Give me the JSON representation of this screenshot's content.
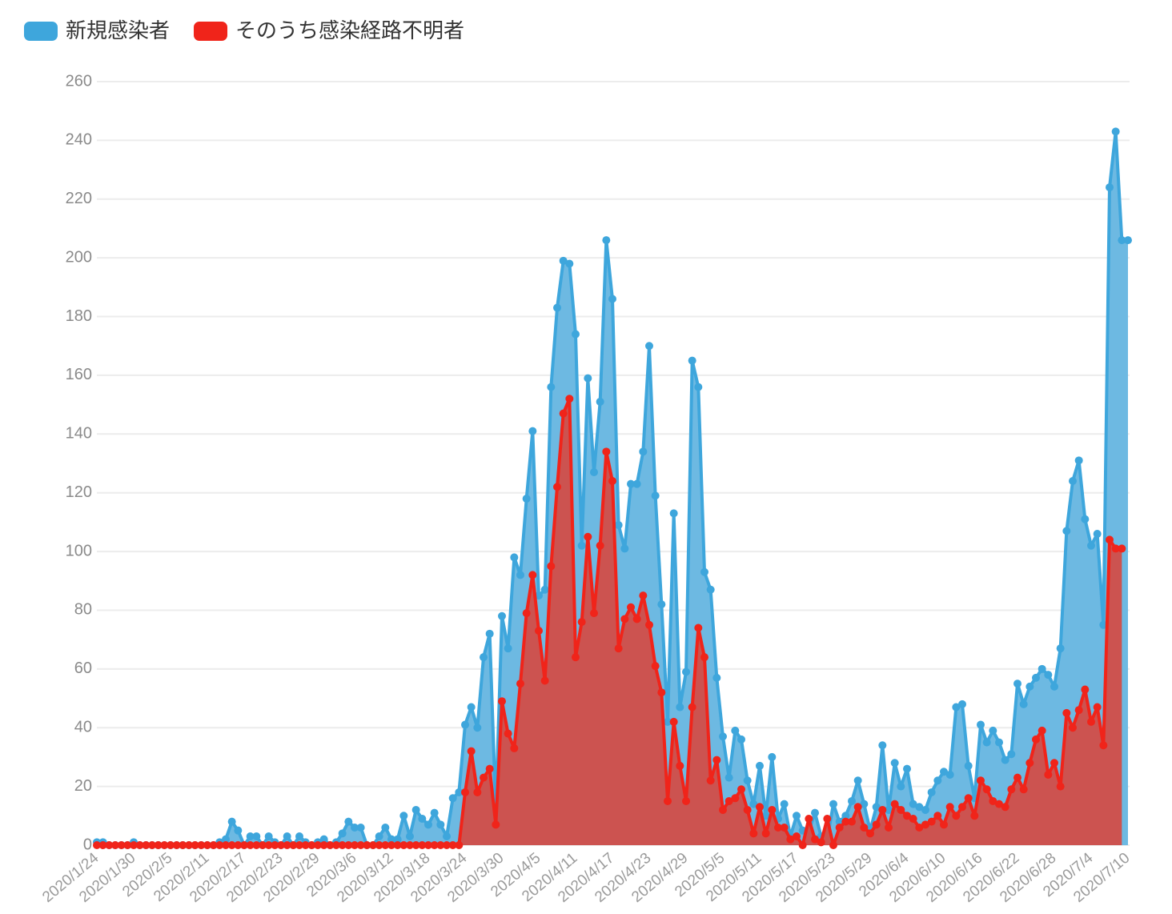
{
  "chart_data": {
    "type": "area-line",
    "categories": [
      "2020/1/24",
      null,
      null,
      null,
      null,
      null,
      "2020/1/30",
      null,
      null,
      null,
      null,
      null,
      "2020/2/5",
      null,
      null,
      null,
      null,
      null,
      "2020/2/11",
      null,
      null,
      null,
      null,
      null,
      "2020/2/17",
      null,
      null,
      null,
      null,
      null,
      "2020/2/23",
      null,
      null,
      null,
      null,
      null,
      "2020/2/29",
      null,
      null,
      null,
      null,
      null,
      "2020/3/6",
      null,
      null,
      null,
      null,
      null,
      "2020/3/12",
      null,
      null,
      null,
      null,
      null,
      "2020/3/18",
      null,
      null,
      null,
      null,
      null,
      "2020/3/24",
      null,
      null,
      null,
      null,
      null,
      "2020/3/30",
      null,
      null,
      null,
      null,
      null,
      "2020/4/5",
      null,
      null,
      null,
      null,
      null,
      "2020/4/11",
      null,
      null,
      null,
      null,
      null,
      "2020/4/17",
      null,
      null,
      null,
      null,
      null,
      "2020/4/23",
      null,
      null,
      null,
      null,
      null,
      "2020/4/29",
      null,
      null,
      null,
      null,
      null,
      "2020/5/5",
      null,
      null,
      null,
      null,
      null,
      "2020/5/11",
      null,
      null,
      null,
      null,
      null,
      "2020/5/17",
      null,
      null,
      null,
      null,
      null,
      "2020/5/23",
      null,
      null,
      null,
      null,
      null,
      "2020/5/29",
      null,
      null,
      null,
      null,
      null,
      "2020/6/4",
      null,
      null,
      null,
      null,
      null,
      "2020/6/10",
      null,
      null,
      null,
      null,
      null,
      "2020/6/16",
      null,
      null,
      null,
      null,
      null,
      "2020/6/22",
      null,
      null,
      null,
      null,
      null,
      "2020/6/28",
      null,
      null,
      null,
      null,
      null,
      "2020/7/4",
      null,
      null,
      null,
      null,
      null,
      "2020/7/10"
    ],
    "series": [
      {
        "name": "新規感染者",
        "color": "#3ea6dc",
        "fill": "#6db9e2",
        "values": [
          1,
          1,
          0,
          0,
          0,
          0,
          1,
          0,
          0,
          0,
          0,
          0,
          0,
          0,
          0,
          0,
          0,
          0,
          0,
          0,
          1,
          2,
          8,
          5,
          0,
          3,
          3,
          0,
          3,
          1,
          0,
          3,
          0,
          3,
          1,
          0,
          1,
          2,
          0,
          1,
          4,
          8,
          6,
          6,
          0,
          0,
          3,
          6,
          2,
          2,
          10,
          3,
          12,
          9,
          7,
          11,
          7,
          3,
          16,
          18,
          41,
          47,
          40,
          64,
          72,
          12,
          78,
          67,
          98,
          92,
          118,
          141,
          85,
          87,
          156,
          183,
          199,
          198,
          174,
          102,
          159,
          127,
          151,
          206,
          186,
          109,
          101,
          123,
          123,
          134,
          170,
          119,
          82,
          42,
          113,
          47,
          59,
          165,
          156,
          93,
          87,
          57,
          37,
          23,
          39,
          36,
          22,
          14,
          27,
          10,
          30,
          9,
          14,
          3,
          10,
          5,
          5,
          11,
          3,
          2,
          14,
          8,
          10,
          15,
          22,
          14,
          5,
          13,
          34,
          12,
          28,
          20,
          26,
          14,
          13,
          12,
          18,
          22,
          25,
          24,
          47,
          48,
          27,
          16,
          41,
          35,
          39,
          35,
          29,
          31,
          55,
          48,
          54,
          57,
          60,
          58,
          54,
          67,
          107,
          124,
          131,
          111,
          102,
          106,
          75,
          224,
          243,
          206,
          206
        ]
      },
      {
        "name": "そのうち感染経路不明者",
        "color": "#f0241a",
        "fill": "#cc5350",
        "values": [
          0,
          0,
          0,
          0,
          0,
          0,
          0,
          0,
          0,
          0,
          0,
          0,
          0,
          0,
          0,
          0,
          0,
          0,
          0,
          0,
          0,
          0,
          0,
          0,
          0,
          0,
          0,
          0,
          0,
          0,
          0,
          0,
          0,
          0,
          0,
          0,
          0,
          0,
          0,
          0,
          0,
          0,
          0,
          0,
          0,
          0,
          0,
          0,
          0,
          0,
          0,
          0,
          0,
          0,
          0,
          0,
          0,
          0,
          0,
          0,
          18,
          32,
          18,
          23,
          26,
          7,
          49,
          38,
          33,
          55,
          79,
          92,
          73,
          56,
          95,
          122,
          147,
          152,
          64,
          76,
          105,
          79,
          102,
          134,
          124,
          67,
          77,
          81,
          77,
          85,
          75,
          61,
          52,
          15,
          42,
          27,
          15,
          47,
          74,
          64,
          22,
          29,
          12,
          15,
          16,
          19,
          12,
          4,
          13,
          4,
          12,
          6,
          6,
          2,
          3,
          0,
          9,
          2,
          1,
          9,
          0,
          6,
          8,
          8,
          13,
          6,
          4,
          7,
          12,
          6,
          14,
          12,
          10,
          9,
          6,
          7,
          8,
          10,
          7,
          13,
          10,
          13,
          16,
          10,
          22,
          19,
          15,
          14,
          13,
          19,
          23,
          19,
          28,
          36,
          39,
          24,
          28,
          20,
          45,
          40,
          46,
          53,
          42,
          47,
          34,
          104,
          101,
          101,
          null
        ]
      }
    ],
    "ylim": [
      0,
      260
    ],
    "yticks": [
      0,
      20,
      40,
      60,
      80,
      100,
      120,
      140,
      160,
      180,
      200,
      220,
      240,
      260
    ],
    "grid": true,
    "legend": "top-left"
  }
}
